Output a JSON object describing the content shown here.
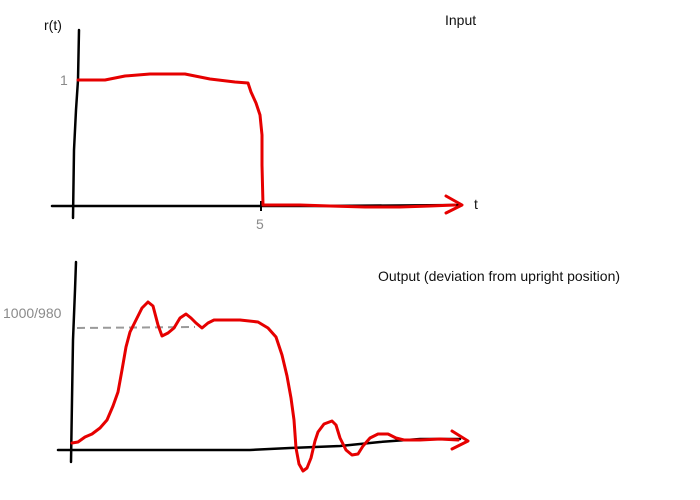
{
  "input_panel": {
    "title": "Input",
    "y_axis_label": "r(t)",
    "x_axis_label": "t",
    "y_tick": "1",
    "x_tick": "5"
  },
  "output_panel": {
    "title": "Output (deviation from upright position)",
    "y_tick": "1000/980"
  },
  "colors": {
    "signal": "#e60000",
    "axis": "#000000",
    "tick_text": "#8a8a8a",
    "reference_line": "#9a9a9a"
  }
}
